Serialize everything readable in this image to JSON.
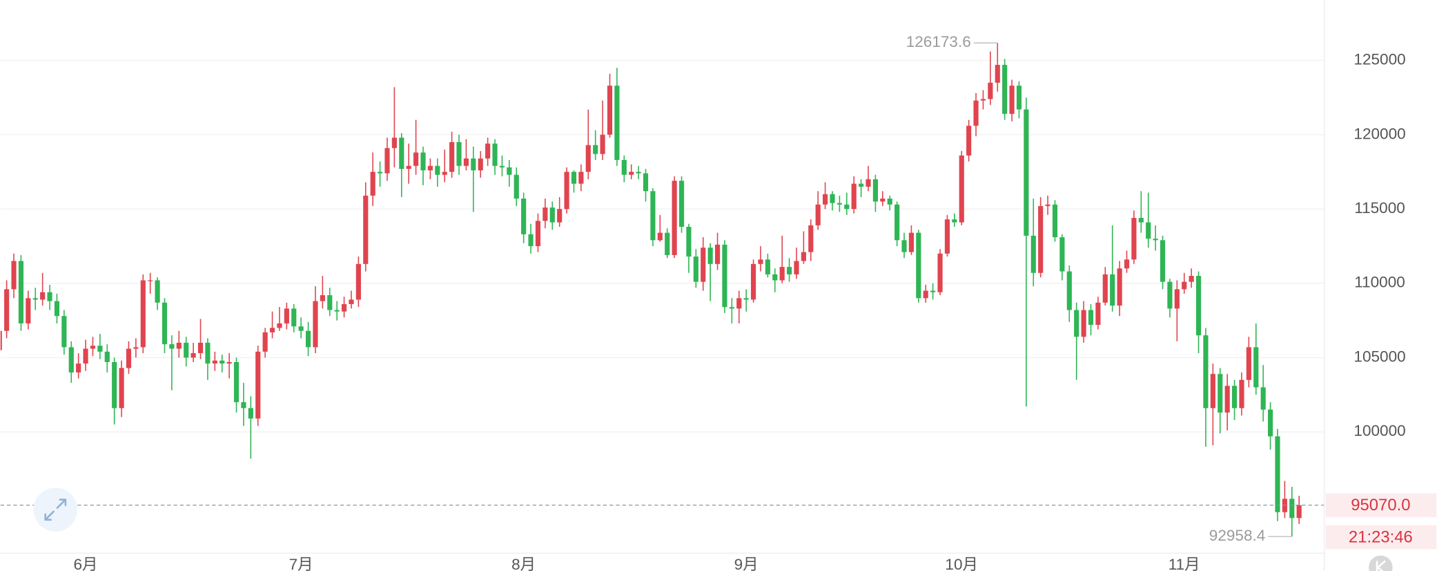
{
  "chart_data": {
    "type": "candlestick",
    "up_color": "#e0444f",
    "down_color": "#2fb555",
    "grid": true,
    "ylim": [
      91870,
      129065
    ],
    "yticks": [
      100000,
      105000,
      110000,
      115000,
      120000,
      125000
    ],
    "categories": [
      null,
      null,
      null,
      null,
      null,
      null,
      null,
      null,
      null,
      null,
      null,
      null,
      "6月",
      null,
      null,
      null,
      null,
      null,
      null,
      null,
      null,
      null,
      null,
      null,
      null,
      null,
      null,
      null,
      null,
      null,
      null,
      null,
      null,
      null,
      null,
      null,
      null,
      null,
      null,
      null,
      null,
      null,
      "7月",
      null,
      null,
      null,
      null,
      null,
      null,
      null,
      null,
      null,
      null,
      null,
      null,
      null,
      null,
      null,
      null,
      null,
      null,
      null,
      null,
      null,
      null,
      null,
      null,
      null,
      null,
      null,
      null,
      null,
      null,
      "8月",
      null,
      null,
      null,
      null,
      null,
      null,
      null,
      null,
      null,
      null,
      null,
      null,
      null,
      null,
      null,
      null,
      null,
      null,
      null,
      null,
      null,
      null,
      null,
      null,
      null,
      null,
      null,
      null,
      null,
      null,
      "9月",
      null,
      null,
      null,
      null,
      null,
      null,
      null,
      null,
      null,
      null,
      null,
      null,
      null,
      null,
      null,
      null,
      null,
      null,
      null,
      null,
      null,
      null,
      null,
      null,
      null,
      null,
      null,
      null,
      null,
      "10月",
      null,
      null,
      null,
      null,
      null,
      null,
      null,
      null,
      null,
      null,
      null,
      null,
      null,
      null,
      null,
      null,
      null,
      null,
      null,
      null,
      null,
      null,
      null,
      null,
      null,
      null,
      null,
      null,
      null,
      null,
      "11月",
      null,
      null,
      null,
      null,
      null,
      null,
      null,
      null,
      null,
      null,
      null,
      null,
      null,
      null,
      null,
      null
    ],
    "open": [
      105500,
      106800,
      109600,
      111500,
      107300,
      109000,
      108900,
      109400,
      108800,
      107800,
      105700,
      104000,
      104600,
      105600,
      105800,
      105400,
      104700,
      101600,
      104300,
      105600,
      105700,
      110200,
      110200,
      108700,
      105900,
      105600,
      106000,
      105000,
      105300,
      106000,
      104600,
      104800,
      104600,
      104700,
      102000,
      101600,
      100900,
      105400,
      106700,
      107000,
      107300,
      108300,
      107100,
      106800,
      105700,
      108800,
      109200,
      108200,
      108100,
      108600,
      108900,
      111300,
      115900,
      117500,
      117400,
      119100,
      119800,
      117700,
      117900,
      118800,
      117600,
      117900,
      117300,
      117500,
      119500,
      117900,
      118400,
      117600,
      118400,
      119400,
      117900,
      117800,
      117300,
      115700,
      113300,
      112500,
      114200,
      115100,
      114100,
      115000,
      117500,
      116700,
      117500,
      119300,
      118700,
      120000,
      123300,
      118300,
      117300,
      117500,
      117400,
      116200,
      112900,
      113400,
      111900,
      116900,
      113800,
      111800,
      110100,
      112400,
      111300,
      112600,
      108400,
      108300,
      109000,
      108900,
      111300,
      111600,
      110600,
      110200,
      111100,
      110600,
      111500,
      112100,
      113900,
      115300,
      116000,
      115400,
      115300,
      115000,
      116700,
      116500,
      117000,
      115500,
      115700,
      115300,
      112900,
      112100,
      113400,
      109000,
      109500,
      109400,
      112000,
      114300,
      114100,
      118600,
      120600,
      122300,
      122400,
      123500,
      124700,
      121400,
      123300,
      121700,
      113200,
      110700,
      115200,
      115300,
      113100,
      110800,
      108200,
      106400,
      108200,
      107200,
      108700,
      110600,
      108500,
      111000,
      111600,
      114400,
      114100,
      113000,
      112900,
      110100,
      108300,
      109600,
      110100,
      110500,
      106500,
      101600,
      103900,
      101300,
      103100,
      101600,
      103500,
      105700,
      103000,
      101500,
      99700,
      94600,
      95500,
      94200
    ],
    "high": [
      107400,
      110200,
      112000,
      111900,
      109500,
      109700,
      110700,
      109900,
      109300,
      108200,
      106100,
      105300,
      106200,
      106400,
      106600,
      105900,
      105000,
      104800,
      106100,
      106300,
      110600,
      110700,
      110400,
      109000,
      106500,
      106800,
      106400,
      106000,
      107600,
      106300,
      105400,
      105200,
      105300,
      105000,
      103300,
      102400,
      105800,
      107000,
      108100,
      108400,
      108700,
      108600,
      107700,
      107400,
      109800,
      110500,
      109700,
      108800,
      109100,
      109500,
      111800,
      116800,
      118800,
      118200,
      119800,
      123200,
      120100,
      119400,
      121000,
      119200,
      118400,
      118400,
      119000,
      120200,
      120000,
      119700,
      119200,
      118900,
      119800,
      119700,
      118600,
      118300,
      117800,
      116100,
      114000,
      114700,
      115700,
      115500,
      115800,
      117800,
      117600,
      118000,
      121700,
      120300,
      122300,
      124100,
      124500,
      118600,
      118000,
      117900,
      117700,
      116400,
      114600,
      113700,
      117200,
      117200,
      114000,
      112300,
      113100,
      112700,
      113400,
      112900,
      109000,
      109500,
      109600,
      111600,
      112500,
      112000,
      111000,
      113200,
      111700,
      112400,
      113500,
      114300,
      116200,
      116800,
      116200,
      115900,
      116100,
      117200,
      117000,
      117900,
      117300,
      116200,
      115900,
      115500,
      113400,
      113900,
      113600,
      109900,
      110000,
      112300,
      114600,
      114700,
      118900,
      121000,
      122800,
      123000,
      125600,
      126173.6,
      125100,
      123700,
      123600,
      122500,
      115700,
      115800,
      115900,
      115600,
      113300,
      111200,
      108700,
      108800,
      108600,
      109100,
      111100,
      113900,
      111500,
      112200,
      114900,
      116200,
      116100,
      113900,
      113200,
      110300,
      110200,
      110700,
      111000,
      110800,
      107000,
      104600,
      104300,
      103900,
      103500,
      104000,
      106400,
      107300,
      104500,
      102000,
      100200,
      96700,
      96300,
      95700
    ],
    "low": [
      104900,
      106300,
      109000,
      106800,
      106900,
      108200,
      108500,
      108200,
      107300,
      105200,
      103300,
      103600,
      104100,
      105100,
      104900,
      104000,
      100500,
      101000,
      103900,
      105000,
      105300,
      109300,
      108200,
      105300,
      102800,
      105000,
      104400,
      104700,
      104900,
      103500,
      104100,
      104000,
      103600,
      101300,
      100400,
      98200,
      100400,
      105000,
      106300,
      106800,
      106900,
      106700,
      106300,
      105100,
      105300,
      108300,
      107800,
      107500,
      107700,
      108300,
      108400,
      110800,
      115200,
      116500,
      116900,
      117800,
      115800,
      116700,
      117300,
      116600,
      117000,
      116500,
      116800,
      117100,
      117300,
      117600,
      114800,
      117100,
      117900,
      117300,
      117200,
      116500,
      115200,
      112700,
      112000,
      112100,
      113700,
      113600,
      113800,
      114700,
      116100,
      116200,
      117000,
      118300,
      118300,
      119800,
      117900,
      116800,
      117000,
      117000,
      115500,
      112500,
      112800,
      111700,
      111700,
      113400,
      110700,
      109700,
      109500,
      108800,
      110900,
      108000,
      107300,
      107300,
      108100,
      108700,
      110800,
      110400,
      109400,
      110000,
      110100,
      110300,
      111300,
      111500,
      113600,
      115000,
      114900,
      114800,
      114600,
      114700,
      115800,
      116200,
      114800,
      115200,
      114900,
      112500,
      111700,
      111900,
      108700,
      108700,
      108900,
      109200,
      111800,
      113800,
      113900,
      118200,
      119900,
      121700,
      122000,
      122900,
      121000,
      120900,
      121100,
      101700,
      109800,
      110400,
      114600,
      112800,
      110200,
      107400,
      103500,
      106000,
      106500,
      106900,
      108500,
      108100,
      107800,
      110700,
      111300,
      113400,
      112400,
      112200,
      109600,
      107700,
      106100,
      109300,
      109700,
      105300,
      99000,
      99100,
      99900,
      100100,
      100800,
      101100,
      103000,
      102500,
      100700,
      98800,
      94000,
      94200,
      92958.4,
      93800
    ],
    "close": [
      106800,
      109600,
      111500,
      107300,
      109000,
      108900,
      109400,
      108800,
      107800,
      105700,
      104000,
      104600,
      105600,
      105800,
      105400,
      104700,
      101600,
      104300,
      105600,
      105700,
      110200,
      110200,
      108700,
      105900,
      105600,
      106000,
      105000,
      105300,
      106000,
      104600,
      104800,
      104600,
      104700,
      102000,
      101600,
      100900,
      105400,
      106700,
      107000,
      107300,
      108300,
      107100,
      106800,
      105700,
      108800,
      109200,
      108200,
      108100,
      108600,
      108900,
      111300,
      115900,
      117500,
      117400,
      119100,
      119800,
      117700,
      117900,
      118800,
      117600,
      117900,
      117300,
      117500,
      119500,
      117900,
      118400,
      117600,
      118400,
      119400,
      117900,
      117800,
      117300,
      115700,
      113300,
      112500,
      114200,
      115100,
      114100,
      115000,
      117500,
      116700,
      117500,
      119300,
      118700,
      120000,
      123300,
      118300,
      117300,
      117500,
      117400,
      116200,
      112900,
      113400,
      111900,
      116900,
      113800,
      111800,
      110100,
      112400,
      111300,
      112600,
      108400,
      108300,
      109000,
      108900,
      111300,
      111600,
      110600,
      110200,
      111100,
      110600,
      111500,
      112100,
      113900,
      115300,
      116000,
      115400,
      115300,
      115000,
      116700,
      116500,
      117000,
      115500,
      115700,
      115300,
      112900,
      112100,
      113400,
      109000,
      109500,
      109400,
      112000,
      114300,
      114100,
      118600,
      120600,
      122300,
      122400,
      123500,
      124700,
      121400,
      123300,
      121700,
      113200,
      110700,
      115200,
      115300,
      113100,
      110800,
      108200,
      106400,
      108200,
      107200,
      108700,
      110600,
      108500,
      111000,
      111600,
      114400,
      114100,
      113000,
      112900,
      110100,
      108300,
      109600,
      110100,
      110500,
      106500,
      101600,
      103900,
      101300,
      103100,
      101600,
      103500,
      105700,
      103000,
      101500,
      99700,
      94600,
      95500,
      94200,
      95070
    ],
    "high_marker": 126173.6,
    "low_marker": 92958.4,
    "last_price": {
      "value": 95070,
      "label": "95070.0"
    },
    "countdown": "21:23:46"
  }
}
